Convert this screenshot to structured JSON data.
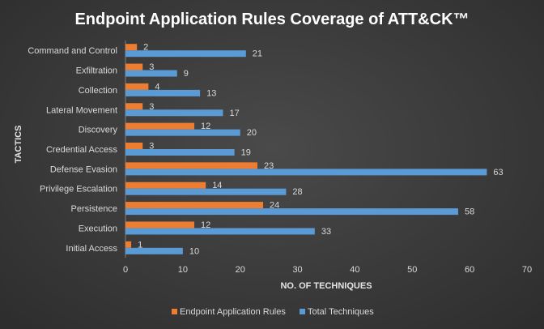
{
  "chart_data": {
    "type": "bar",
    "orientation": "horizontal",
    "title": "Endpoint Application Rules Coverage of ATT&CK™",
    "xlabel": "NO. OF TECHNIQUES",
    "ylabel": "TACTICS",
    "xlim": [
      0,
      70
    ],
    "xticks": [
      "0",
      "10",
      "20",
      "30",
      "40",
      "50",
      "60",
      "70"
    ],
    "grid": false,
    "legend_position": "bottom",
    "categories": [
      "Command and Control",
      "Exfiltration",
      "Collection",
      "Lateral Movement",
      "Discovery",
      "Credential Access",
      "Defense Evasion",
      "Privilege Escalation",
      "Persistence",
      "Execution",
      "Initial Access"
    ],
    "series": [
      {
        "name": "Endpoint Application Rules",
        "color": "#ed7d31",
        "values": [
          2,
          3,
          4,
          3,
          12,
          3,
          23,
          14,
          24,
          12,
          1
        ],
        "labels": [
          "2",
          "3",
          "4",
          "3",
          "12",
          "3",
          "23",
          "14",
          "24",
          "12",
          "1"
        ]
      },
      {
        "name": "Total Techniques",
        "color": "#5b9bd5",
        "values": [
          21,
          9,
          13,
          17,
          20,
          19,
          63,
          28,
          58,
          33,
          10
        ],
        "labels": [
          "21",
          "9",
          "13",
          "17",
          "20",
          "19",
          "63",
          "28",
          "58",
          "33",
          "10"
        ]
      }
    ]
  }
}
